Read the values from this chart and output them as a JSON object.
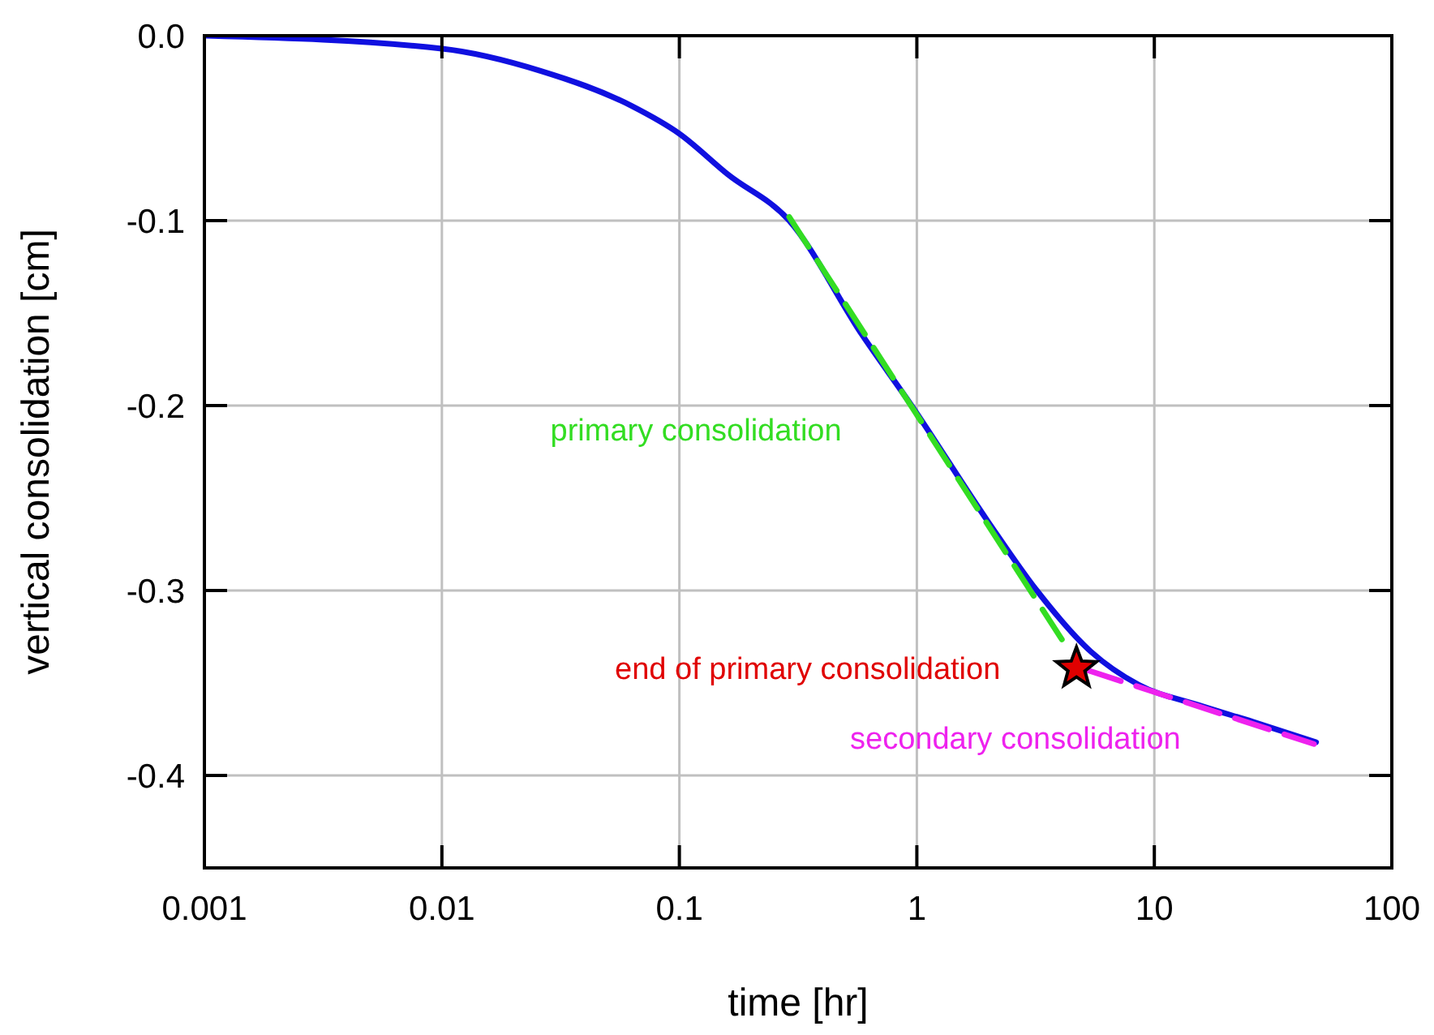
{
  "chart_data": {
    "type": "line",
    "xlabel": "time [hr]",
    "ylabel": "vertical consolidation [cm]",
    "log": "x",
    "grid": true,
    "xlim": [
      0.001,
      100
    ],
    "xticks": [
      0.001,
      0.01,
      0.1,
      1,
      10,
      100
    ],
    "ylim": [
      -0.45,
      0
    ],
    "yticks": [
      {
        "value": 0,
        "label": "0.0"
      },
      -0.1,
      -0.2,
      -0.3,
      -0.4
    ],
    "series": [
      {
        "color": "#1010e0",
        "line_style": "solid",
        "x": [
          0.001,
          0.01,
          0.026,
          0.063,
          0.1,
          0.16,
          0.29,
          0.59,
          0.95,
          2.0,
          3.2,
          5.4,
          8.6,
          15.4,
          26,
          48
        ],
        "values": [
          0,
          -0.007,
          -0.019,
          -0.038,
          -0.053,
          -0.075,
          -0.1,
          -0.162,
          -0.2,
          -0.263,
          -0.3,
          -0.333,
          -0.351,
          -0.362,
          -0.371,
          -0.382
        ]
      },
      {
        "color": "#33dd22",
        "line_style": "dashed",
        "x": [
          0.29,
          4.4
        ],
        "values": [
          -0.098,
          -0.333
        ]
      },
      {
        "color": "#ee22ee",
        "line_style": "dashed",
        "x": [
          5.2,
          47
        ],
        "values": [
          -0.343,
          -0.383
        ]
      },
      {
        "type": "scatter",
        "marker": "star",
        "color": "#e00000",
        "x": [
          4.7
        ],
        "values": [
          -0.342
        ]
      }
    ],
    "annotations": [
      "primary consolidation",
      "end of primary consolidation",
      "secondary consolidation"
    ]
  }
}
